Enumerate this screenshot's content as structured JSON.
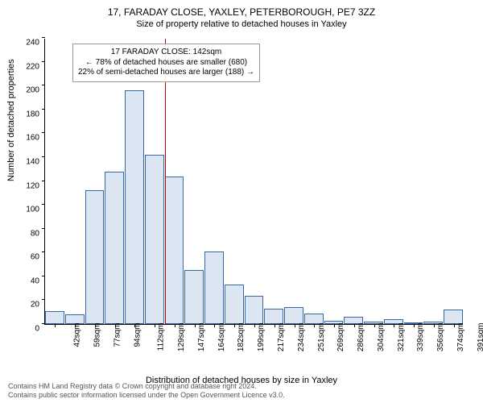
{
  "title": "17, FARADAY CLOSE, YAXLEY, PETERBOROUGH, PE7 3ZZ",
  "subtitle": "Size of property relative to detached houses in Yaxley",
  "ylabel": "Number of detached properties",
  "xlabel": "Distribution of detached houses by size in Yaxley",
  "copyright_line1": "Contains HM Land Registry data © Crown copyright and database right 2024.",
  "copyright_line2": "Contains public sector information licensed under the Open Government Licence v3.0.",
  "chart": {
    "type": "histogram",
    "background_color": "#ffffff",
    "bar_fill": "#dce6f2",
    "bar_stroke": "#3a6aa5",
    "marker_color": "#cc0000",
    "ylim": [
      0,
      240
    ],
    "ytick_step": 20,
    "yticks": [
      0,
      20,
      40,
      60,
      80,
      100,
      120,
      140,
      160,
      180,
      200,
      220,
      240
    ],
    "xticks": [
      "42sqm",
      "59sqm",
      "77sqm",
      "94sqm",
      "112sqm",
      "129sqm",
      "147sqm",
      "164sqm",
      "182sqm",
      "199sqm",
      "217sqm",
      "234sqm",
      "251sqm",
      "269sqm",
      "286sqm",
      "304sqm",
      "321sqm",
      "339sqm",
      "356sqm",
      "374sqm",
      "391sqm"
    ],
    "values": [
      11,
      8,
      112,
      128,
      196,
      142,
      124,
      45,
      61,
      33,
      24,
      13,
      14,
      9,
      3,
      6,
      2,
      4,
      0,
      2,
      12
    ],
    "marker_index": 6,
    "annotation": {
      "line1": "17 FARADAY CLOSE: 142sqm",
      "line2": "← 78% of detached houses are smaller (680)",
      "line3": "22% of semi-detached houses are larger (188) →"
    }
  }
}
